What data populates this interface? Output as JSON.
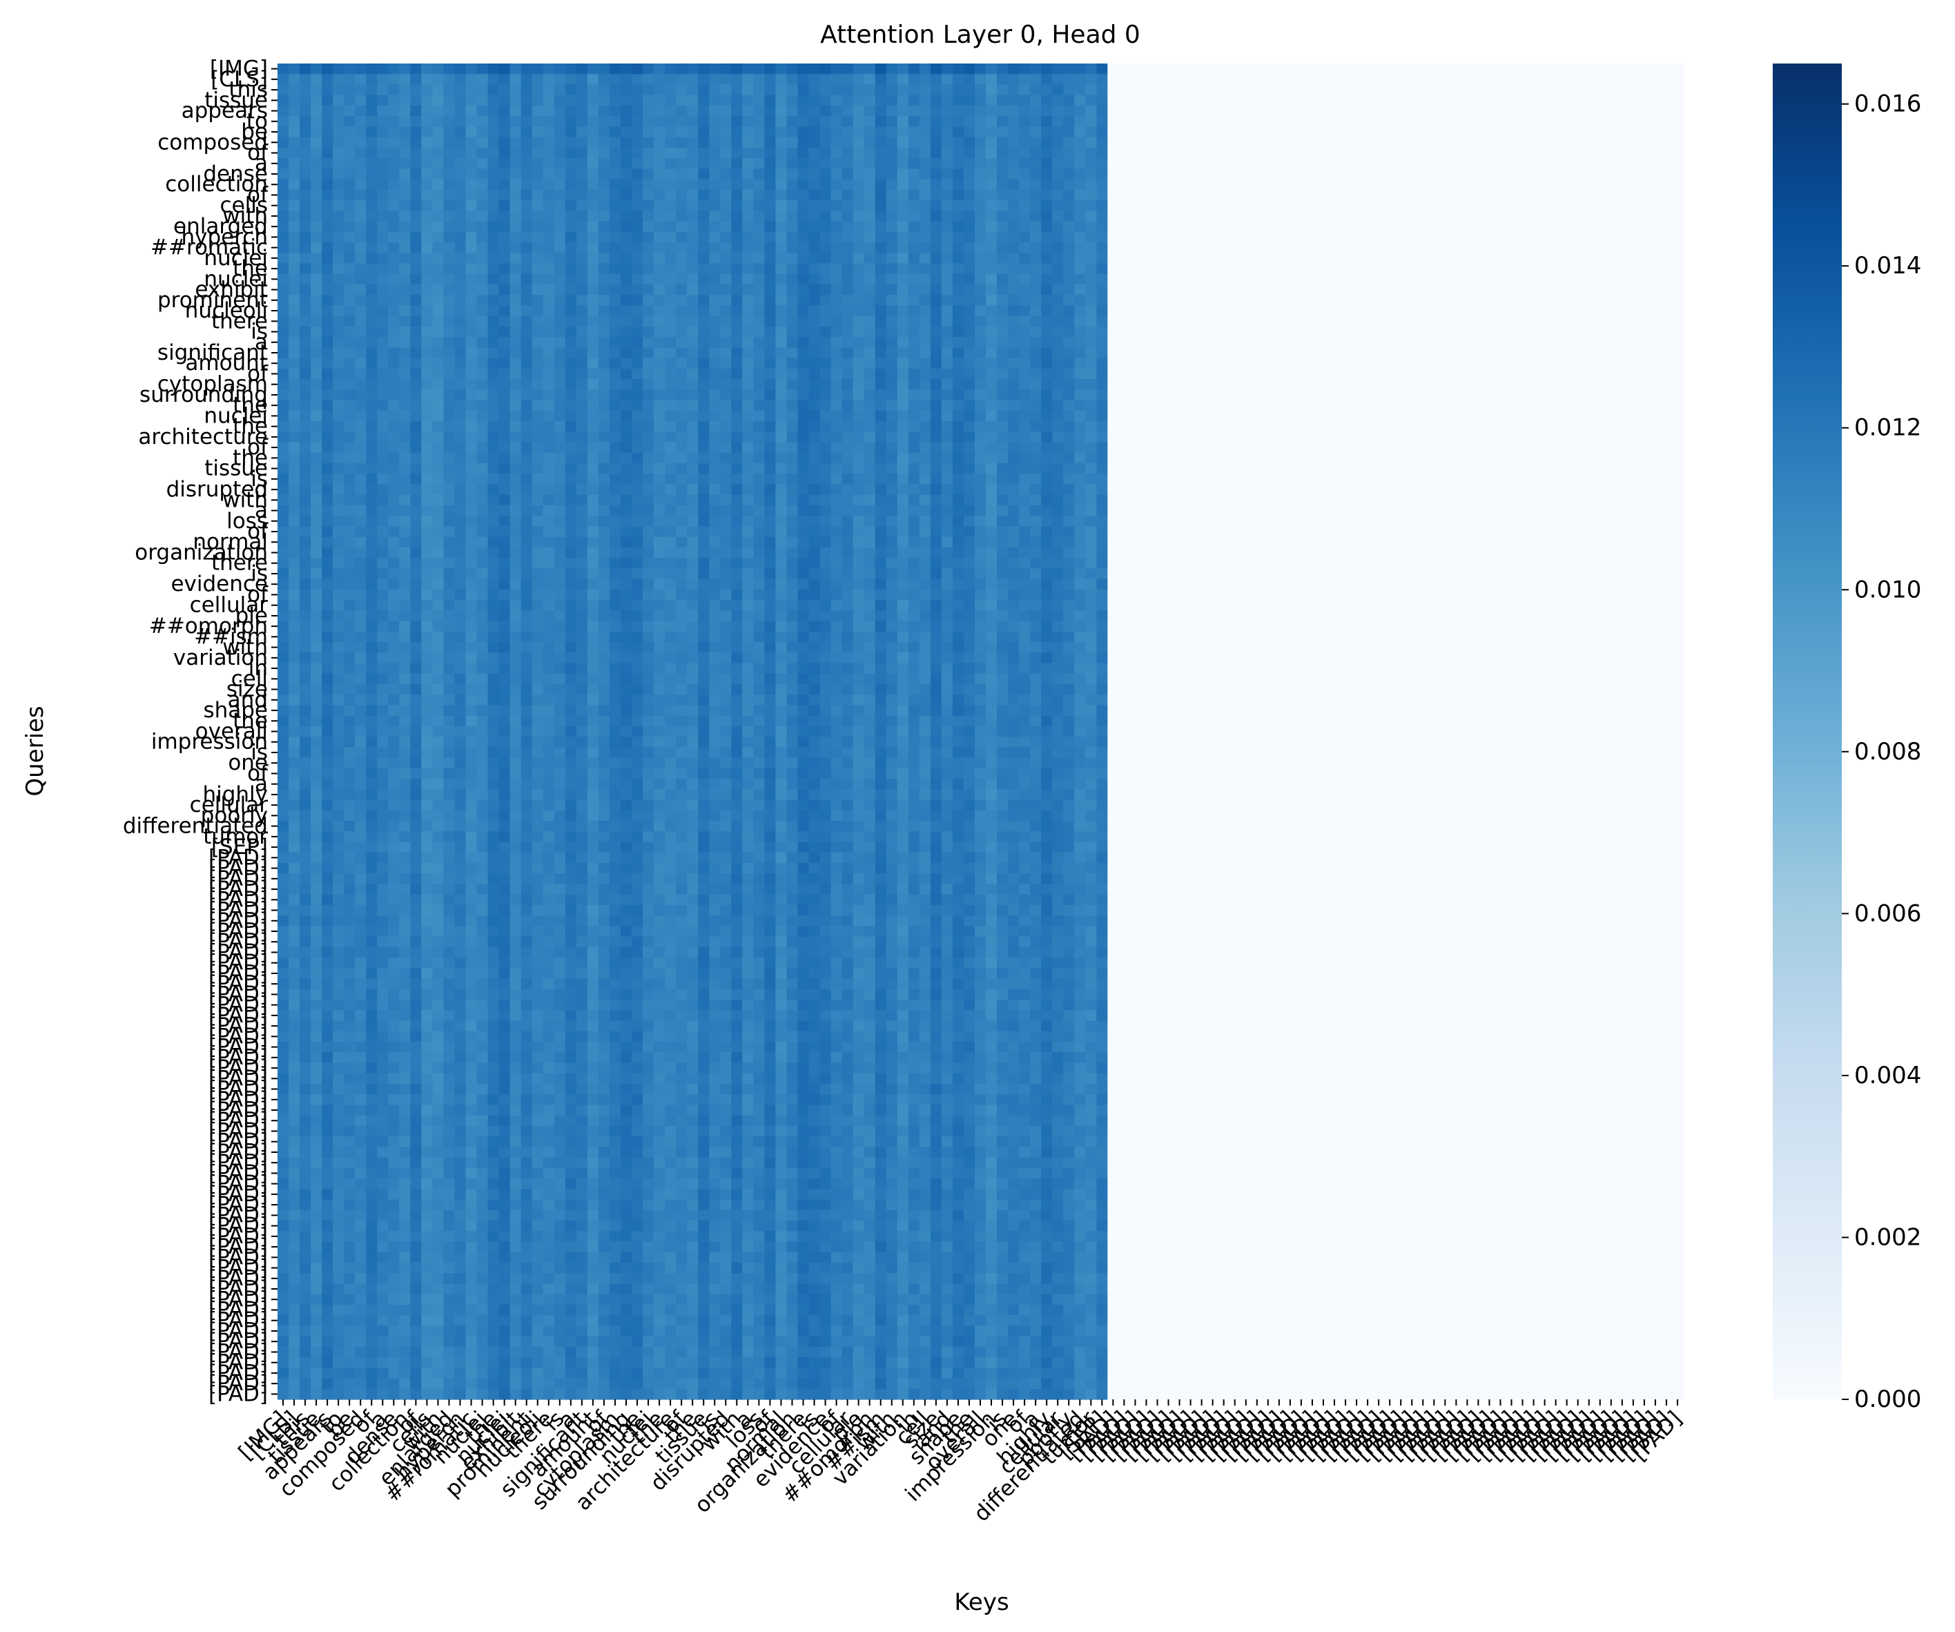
{
  "chart_data": {
    "type": "heatmap",
    "title": "Attention Layer 0, Head 0",
    "xlabel": "Keys",
    "ylabel": "Queries",
    "tokens": [
      "[IMG]",
      "[CLS]",
      "this",
      "tissue",
      "appears",
      "to",
      "be",
      "composed",
      "of",
      "a",
      "dense",
      "collection",
      "of",
      "cells",
      "with",
      "enlarged",
      "hyperch",
      "##romatic",
      "nuclei",
      "the",
      "nuclei",
      "exhibit",
      "prominent",
      "nucleoli",
      "there",
      "is",
      "a",
      "significant",
      "amount",
      "of",
      "cytoplasm",
      "surrounding",
      "the",
      "nuclei",
      "the",
      "architecture",
      "of",
      "the",
      "tissue",
      "is",
      "disrupted",
      "with",
      "a",
      "loss",
      "of",
      "normal",
      "organization",
      "there",
      "is",
      "evidence",
      "of",
      "cellular",
      "ple",
      "##omorph",
      "##ism",
      "with",
      "variation",
      "in",
      "cell",
      "size",
      "and",
      "shape",
      "the",
      "overall",
      "impression",
      "is",
      "one",
      "of",
      "a",
      "highly",
      "cellular",
      "poorly",
      "differentiated",
      "tumor",
      "[SEP]"
    ],
    "pad_token": "[PAD]",
    "pad_count": 52,
    "padded_keys_weight": 0.0,
    "typical_weight": 0.0116,
    "img_query_weight": 0.0128,
    "colormap": "Blues",
    "colorbar": {
      "min": 0.0,
      "max": 0.0165,
      "ticks": [
        "0.000",
        "0.002",
        "0.004",
        "0.006",
        "0.008",
        "0.010",
        "0.012",
        "0.014",
        "0.016"
      ]
    },
    "grid": false,
    "legend": "colorbar-right"
  }
}
